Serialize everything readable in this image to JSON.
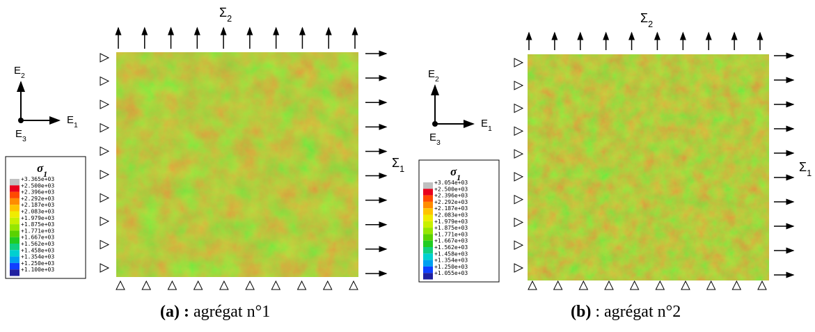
{
  "legend_colors": [
    "#c0c0c0",
    "#e8001c",
    "#ff4a00",
    "#ff8c00",
    "#ffc400",
    "#f0ec00",
    "#c8f000",
    "#96e600",
    "#5ad200",
    "#22cc22",
    "#10d080",
    "#00d0d0",
    "#00a0f0",
    "#1040ff",
    "#2020a0"
  ],
  "panels": [
    {
      "sigma_top": {
        "symbol": "Σ",
        "sub": "2"
      },
      "sigma_right": {
        "symbol": "Σ",
        "sub": "1"
      },
      "axes": {
        "e2": {
          "symbol": "E",
          "sub": "2"
        },
        "e1": {
          "symbol": "E",
          "sub": "1"
        },
        "e3": {
          "symbol": "E",
          "sub": "3"
        }
      },
      "legend_title": {
        "symbol": "σ",
        "sub": "1"
      },
      "legend_values": [
        "+3.365e+03",
        "+2.500e+03",
        "+2.396e+03",
        "+2.292e+03",
        "+2.187e+03",
        "+2.083e+03",
        "+1.979e+03",
        "+1.875e+03",
        "+1.771e+03",
        "+1.667e+03",
        "+1.562e+03",
        "+1.458e+03",
        "+1.354e+03",
        "+1.250e+03",
        "+1.100e+03"
      ],
      "caption_label": "(a) :",
      "caption_text": "agrégat n°1"
    },
    {
      "sigma_top": {
        "symbol": "Σ",
        "sub": "2"
      },
      "sigma_right": {
        "symbol": "Σ",
        "sub": "1"
      },
      "axes": {
        "e2": {
          "symbol": "E",
          "sub": "2"
        },
        "e1": {
          "symbol": "E",
          "sub": "1"
        },
        "e3": {
          "symbol": "E",
          "sub": "3"
        }
      },
      "legend_title": {
        "symbol": "σ",
        "sub": "1"
      },
      "legend_values": [
        "+3.054e+03",
        "+2.500e+03",
        "+2.396e+03",
        "+2.292e+03",
        "+2.187e+03",
        "+2.083e+03",
        "+1.979e+03",
        "+1.875e+03",
        "+1.771e+03",
        "+1.667e+03",
        "+1.562e+03",
        "+1.458e+03",
        "+1.354e+03",
        "+1.250e+03",
        "+1.055e+03"
      ],
      "caption_label": "(b)",
      "caption_text": ": agrégat n°2"
    }
  ]
}
